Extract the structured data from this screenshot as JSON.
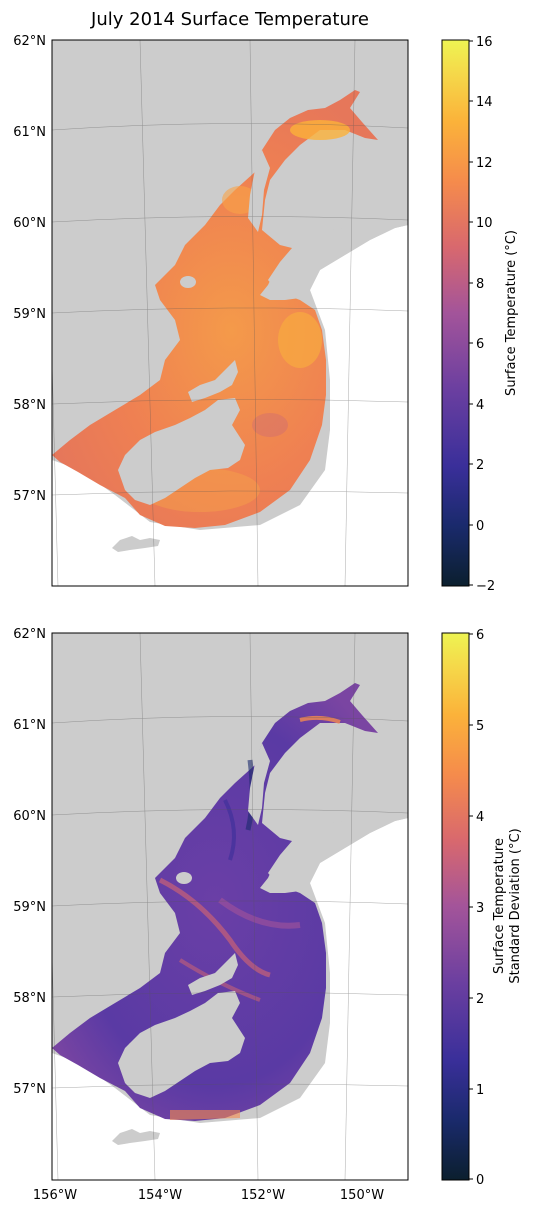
{
  "title": "July 2014 Surface Temperature",
  "map": {
    "lat_labels": [
      "62°N",
      "61°N",
      "60°N",
      "59°N",
      "58°N",
      "57°N"
    ],
    "lon_labels": [
      "156°W",
      "154°W",
      "152°W",
      "150°W"
    ],
    "land_color": "#cccccc",
    "ocean_color": "#ffffff"
  },
  "panels": [
    {
      "field": "surface-temperature",
      "colorbar": {
        "label": "Surface Temperature (°C)",
        "ticks": [
          "16",
          "14",
          "12",
          "10",
          "8",
          "6",
          "4",
          "2",
          "0",
          "−2"
        ],
        "range": [
          -2,
          16
        ],
        "colormap": [
          "#0b1f2e",
          "#1a2a6c",
          "#3a2f9a",
          "#6b3fa0",
          "#a3549a",
          "#d8686e",
          "#f58b4c",
          "#fbb23a",
          "#f5d94a",
          "#eef452"
        ]
      }
    },
    {
      "field": "surface-temperature-std",
      "colorbar": {
        "label_line1": "Surface Temperature",
        "label_line2": "Standard Deviation (°C)",
        "ticks": [
          "6",
          "5",
          "4",
          "3",
          "2",
          "1",
          "0"
        ],
        "range": [
          0,
          6
        ],
        "colormap": [
          "#0b1f2e",
          "#1a2a6c",
          "#3a2f9a",
          "#6b3fa0",
          "#a3549a",
          "#d8686e",
          "#f58b4c",
          "#fbb23a",
          "#f5d94a",
          "#eef452"
        ]
      }
    }
  ]
}
